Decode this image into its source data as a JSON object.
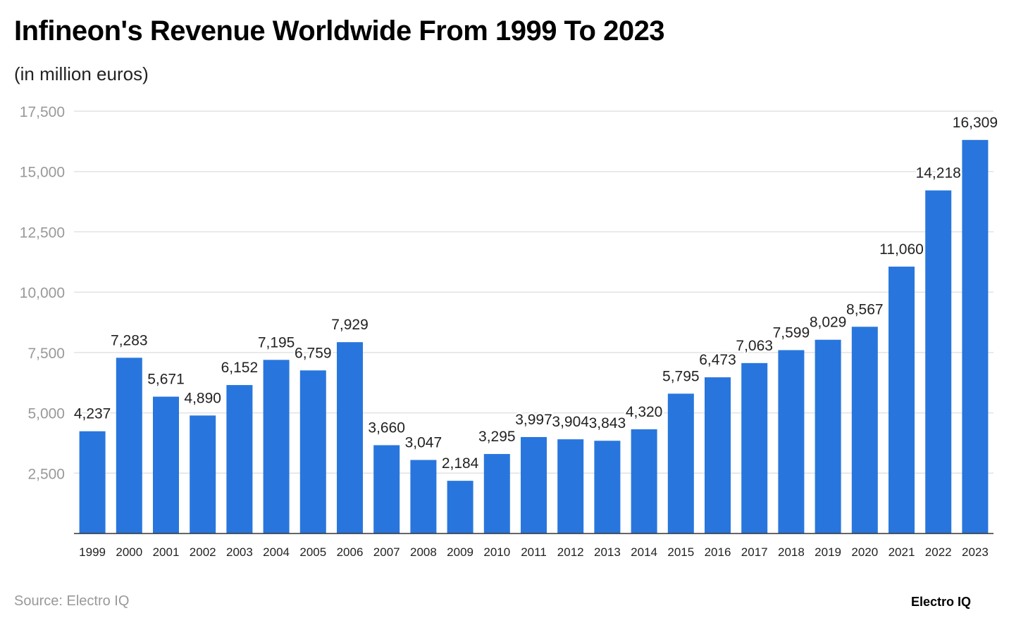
{
  "chart_data": {
    "type": "bar",
    "title": "Infineon's Revenue Worldwide From 1999 To 2023",
    "subtitle": "(in million euros)",
    "categories": [
      "1999",
      "2000",
      "2001",
      "2002",
      "2003",
      "2004",
      "2005",
      "2006",
      "2007",
      "2008",
      "2009",
      "2010",
      "2011",
      "2012",
      "2013",
      "2014",
      "2015",
      "2016",
      "2017",
      "2018",
      "2019",
      "2020",
      "2021",
      "2022",
      "2023"
    ],
    "values": [
      4237,
      7283,
      5671,
      4890,
      6152,
      7195,
      6759,
      7929,
      3660,
      3047,
      2184,
      3295,
      3997,
      3904,
      3843,
      4320,
      5795,
      6473,
      7063,
      7599,
      8029,
      8567,
      11060,
      14218,
      16309
    ],
    "data_labels": [
      "4,237",
      "7,283",
      "5,671",
      "4,890",
      "6,152",
      "7,195",
      "6,759",
      "7,929",
      "3,660",
      "3,047",
      "2,184",
      "3,295",
      "3,997",
      "3,904",
      "3,843",
      "4,320",
      "5,795",
      "6,473",
      "7,063",
      "7,599",
      "8,029",
      "8,567",
      "11,060",
      "14,218",
      "16,309"
    ],
    "ylim": [
      0,
      17500
    ],
    "yticks": [
      "2,500",
      "5,000",
      "7,500",
      "10,000",
      "12,500",
      "15,000",
      "17,500"
    ],
    "ytick_values": [
      2500,
      5000,
      7500,
      10000,
      12500,
      15000,
      17500
    ],
    "grid": true,
    "bar_color": "#2876dd",
    "xlabel": "",
    "ylabel": ""
  },
  "source": "Source: Electro IQ",
  "brand": "Electro IQ"
}
